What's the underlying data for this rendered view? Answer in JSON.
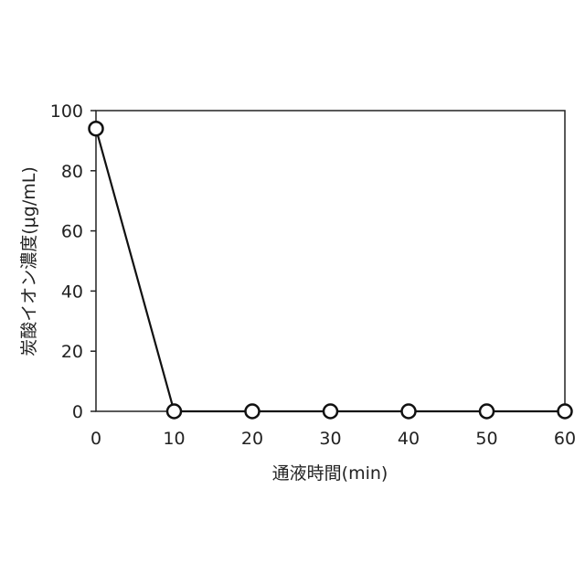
{
  "chart_data": {
    "type": "line",
    "title": "",
    "xlabel": "通液時間(min)",
    "ylabel": "炭酸イオン濃度(μg/mL)",
    "xlim": [
      0,
      60
    ],
    "ylim": [
      0,
      100
    ],
    "x_ticks": [
      0,
      10,
      20,
      30,
      40,
      50,
      60
    ],
    "y_ticks": [
      0,
      20,
      40,
      60,
      80,
      100
    ],
    "grid": false,
    "legend": "none",
    "series": [
      {
        "x": [
          0,
          10,
          20,
          30,
          40,
          50,
          60
        ],
        "values": [
          94,
          0,
          0,
          0,
          0,
          0,
          0
        ],
        "marker": "open-circle",
        "color": "#111111"
      }
    ]
  }
}
